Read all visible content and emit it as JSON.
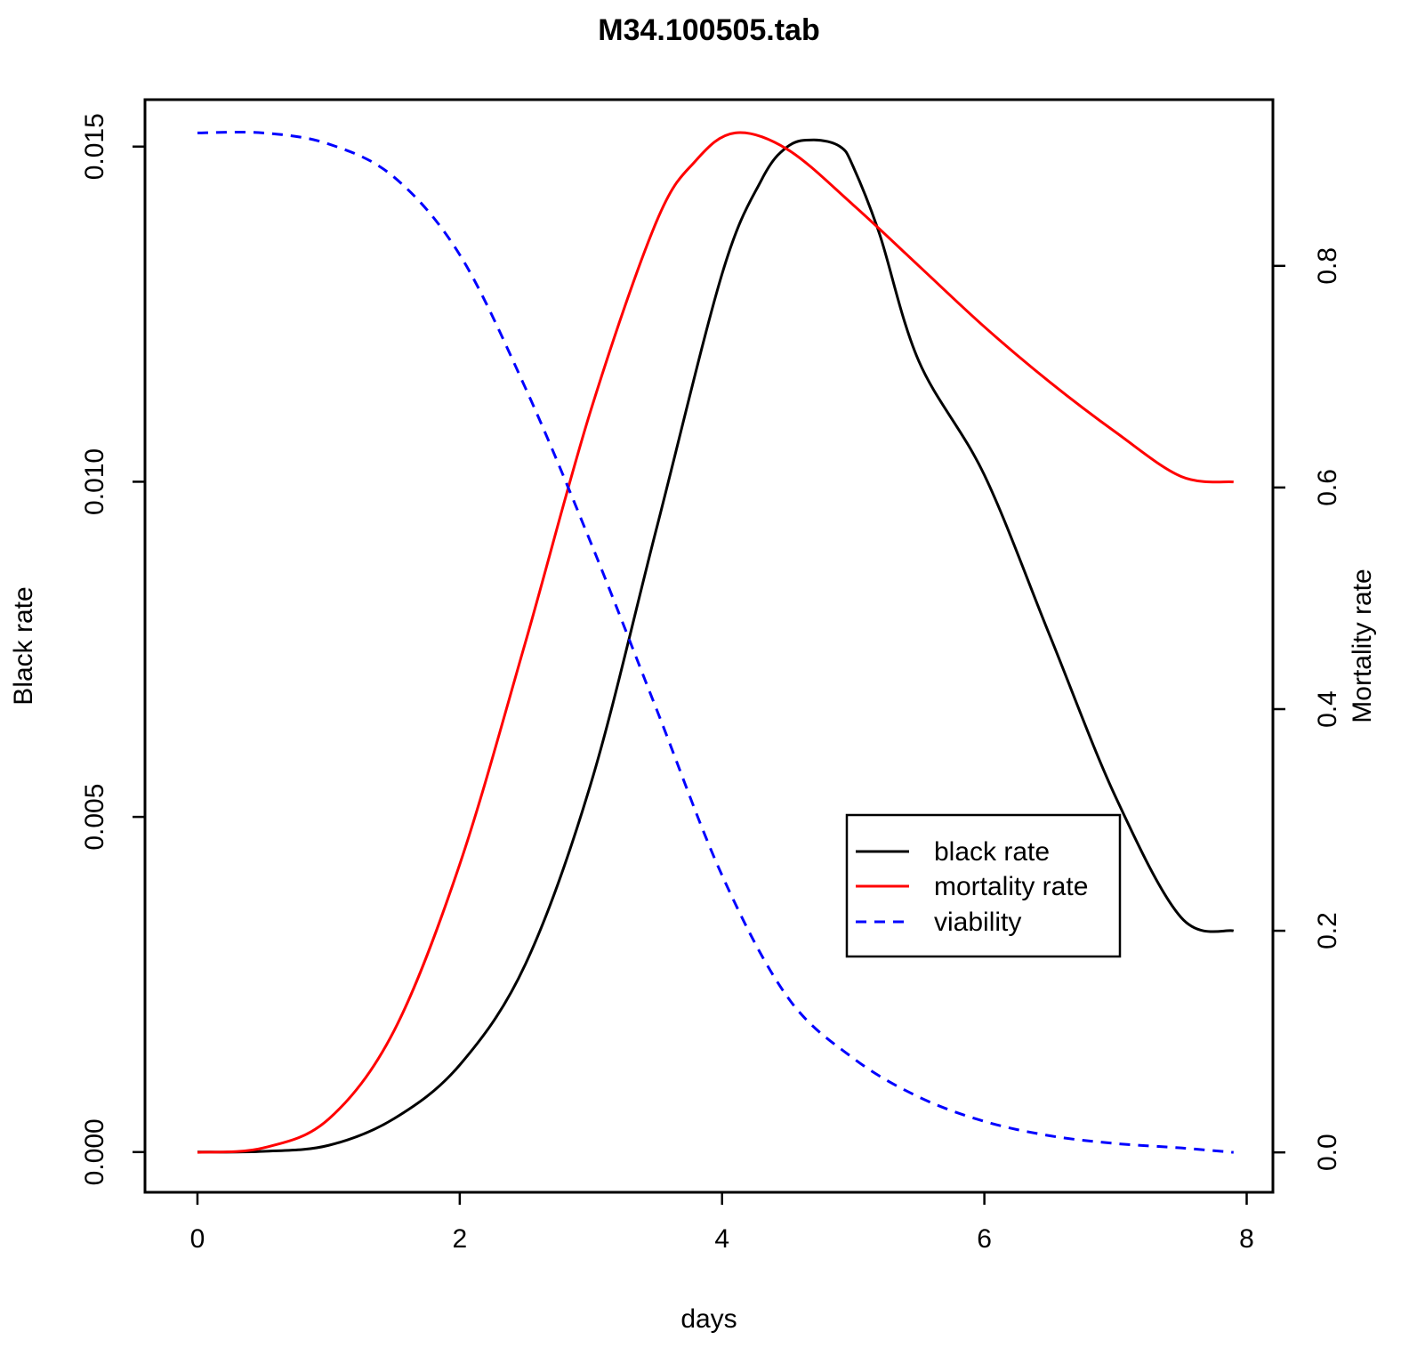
{
  "chart_data": {
    "type": "line",
    "title": "M34.100505.tab",
    "xlabel": "days",
    "ylabel_left": "Black rate",
    "ylabel_right": "Mortality rate",
    "xlim": [
      -0.4,
      8.2
    ],
    "x_ticks": [
      0,
      2,
      4,
      6,
      8
    ],
    "x_tick_labels": [
      "0",
      "2",
      "4",
      "6",
      "8"
    ],
    "ylim_left": [
      -0.0006,
      0.0157
    ],
    "y_left_ticks": [
      0.0,
      0.005,
      0.01,
      0.015
    ],
    "y_left_tick_labels": [
      "0.000",
      "0.005",
      "0.010",
      "0.015"
    ],
    "ylim_right": [
      -0.036,
      0.95
    ],
    "y_right_ticks": [
      0.0,
      0.2,
      0.4,
      0.6,
      0.8
    ],
    "y_right_tick_labels": [
      "0.0",
      "0.2",
      "0.4",
      "0.6",
      "0.8"
    ],
    "grid": false,
    "legend_position": "center-right",
    "series": [
      {
        "name": "black rate",
        "axis": "left",
        "color": "#000000",
        "dash": "solid",
        "x": [
          0,
          0.5,
          1.0,
          1.5,
          2.0,
          2.5,
          3.0,
          3.5,
          4.0,
          4.3,
          4.5,
          4.7,
          4.9,
          5.0,
          5.2,
          5.5,
          6.0,
          6.5,
          7.0,
          7.5,
          7.9
        ],
        "y": [
          0.0,
          1e-05,
          0.0001,
          0.0005,
          0.0013,
          0.0028,
          0.0055,
          0.0093,
          0.0131,
          0.0145,
          0.015,
          0.0151,
          0.015,
          0.0147,
          0.0137,
          0.0118,
          0.0101,
          0.0077,
          0.0053,
          0.0035,
          0.0033
        ]
      },
      {
        "name": "mortality rate",
        "axis": "right",
        "color": "#ff0000",
        "dash": "solid",
        "x": [
          0,
          0.5,
          1.0,
          1.5,
          2.0,
          2.5,
          3.0,
          3.5,
          3.8,
          4.1,
          4.5,
          5.0,
          5.5,
          6.0,
          6.5,
          7.0,
          7.5,
          7.9
        ],
        "y": [
          0.0,
          0.004,
          0.03,
          0.11,
          0.26,
          0.46,
          0.67,
          0.84,
          0.895,
          0.92,
          0.905,
          0.855,
          0.8,
          0.745,
          0.695,
          0.65,
          0.61,
          0.605
        ]
      },
      {
        "name": "viability",
        "axis": "right",
        "color": "#0000ff",
        "dash": "dashed",
        "x": [
          0,
          0.5,
          1.0,
          1.5,
          2.0,
          2.5,
          3.0,
          3.5,
          4.0,
          4.5,
          5.0,
          5.5,
          6.0,
          6.5,
          7.0,
          7.5,
          7.9
        ],
        "y": [
          0.92,
          0.92,
          0.91,
          0.88,
          0.81,
          0.69,
          0.55,
          0.4,
          0.25,
          0.14,
          0.085,
          0.05,
          0.028,
          0.015,
          0.008,
          0.004,
          0.0
        ]
      }
    ]
  }
}
